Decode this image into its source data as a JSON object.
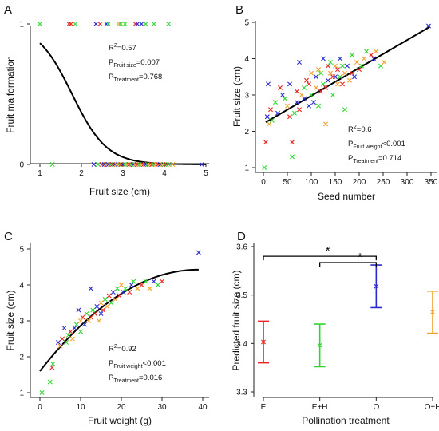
{
  "colors": {
    "red": "#e8241f",
    "green": "#2fd62f",
    "blue": "#2a2acf",
    "orange": "#f4a02a",
    "black": "#000000"
  },
  "chart_data": [
    {
      "panel": "A",
      "type": "scatter",
      "xlabel": "Fruit size (cm)",
      "ylabel": "Fruit malformation",
      "xlim": [
        1,
        5
      ],
      "ylim": [
        0,
        1
      ],
      "xticks": [
        "1",
        "2",
        "3",
        "4",
        "5"
      ],
      "yticks": [
        "0",
        "1"
      ],
      "annotations": [
        {
          "main": "R",
          "sup": "2",
          "rest": "=0.57"
        },
        {
          "main": "P",
          "sub": "Fruit size",
          "rest": "=0.007"
        },
        {
          "main": "P",
          "sub": "Treatment",
          "rest": "=0.768"
        }
      ],
      "curve": {
        "kind": "logistic",
        "intercept": 4.21,
        "slope": -2.37
      },
      "points": [
        [
          1.0,
          1,
          "green"
        ],
        [
          1.7,
          1,
          "red"
        ],
        [
          1.75,
          1,
          "red"
        ],
        [
          1.85,
          1,
          "green"
        ],
        [
          2.35,
          1,
          "blue"
        ],
        [
          2.45,
          1,
          "red"
        ],
        [
          2.6,
          1,
          "blue"
        ],
        [
          2.65,
          1,
          "green"
        ],
        [
          2.9,
          1,
          "orange"
        ],
        [
          2.95,
          1,
          "green"
        ],
        [
          3.05,
          1,
          "green"
        ],
        [
          3.3,
          1,
          "red"
        ],
        [
          3.35,
          1,
          "blue"
        ],
        [
          3.45,
          1,
          "blue"
        ],
        [
          3.55,
          1,
          "green"
        ],
        [
          3.75,
          1,
          "green"
        ],
        [
          4.1,
          1,
          "green"
        ],
        [
          1.3,
          0,
          "green"
        ],
        [
          2.3,
          0,
          "blue"
        ],
        [
          2.4,
          0,
          "green"
        ],
        [
          2.5,
          0,
          "red"
        ],
        [
          2.55,
          0,
          "blue"
        ],
        [
          2.6,
          0,
          "orange"
        ],
        [
          2.65,
          0,
          "blue"
        ],
        [
          2.7,
          0,
          "green"
        ],
        [
          2.75,
          0,
          "red"
        ],
        [
          2.8,
          0,
          "blue"
        ],
        [
          2.85,
          0,
          "orange"
        ],
        [
          2.9,
          0,
          "green"
        ],
        [
          2.95,
          0,
          "red"
        ],
        [
          3.0,
          0,
          "blue"
        ],
        [
          3.05,
          0,
          "green"
        ],
        [
          3.1,
          0,
          "orange"
        ],
        [
          3.15,
          0,
          "red"
        ],
        [
          3.2,
          0,
          "green"
        ],
        [
          3.25,
          0,
          "blue"
        ],
        [
          3.3,
          0,
          "orange"
        ],
        [
          3.35,
          0,
          "red"
        ],
        [
          3.4,
          0,
          "green"
        ],
        [
          3.45,
          0,
          "orange"
        ],
        [
          3.5,
          0,
          "red"
        ],
        [
          3.55,
          0,
          "blue"
        ],
        [
          3.6,
          0,
          "green"
        ],
        [
          3.65,
          0,
          "orange"
        ],
        [
          3.7,
          0,
          "red"
        ],
        [
          3.75,
          0,
          "green"
        ],
        [
          3.8,
          0,
          "orange"
        ],
        [
          3.85,
          0,
          "red"
        ],
        [
          3.9,
          0,
          "blue"
        ],
        [
          3.95,
          0,
          "orange"
        ],
        [
          4.0,
          0,
          "green"
        ],
        [
          4.05,
          0,
          "red"
        ],
        [
          4.1,
          0,
          "green"
        ],
        [
          4.2,
          0,
          "orange"
        ],
        [
          4.9,
          0,
          "blue"
        ]
      ]
    },
    {
      "panel": "B",
      "type": "scatter",
      "xlabel": "Seed number",
      "ylabel": "Fruit size (cm)",
      "xlim": [
        0,
        350
      ],
      "ylim": [
        1,
        5
      ],
      "xticks": [
        "0",
        "50",
        "100",
        "150",
        "200",
        "250",
        "300",
        "350"
      ],
      "yticks": [
        "1",
        "2",
        "3",
        "4",
        "5"
      ],
      "annotations": [
        {
          "main": "R",
          "sup": "2",
          "rest": "=0.6"
        },
        {
          "main": "P",
          "sub": "Fruit weight",
          "rest": "<0.001"
        },
        {
          "main": "P",
          "sub": "Treatment",
          "rest": "=0.714"
        }
      ],
      "curve": {
        "kind": "linear",
        "from": [
          5,
          2.25
        ],
        "to": [
          348,
          4.88
        ]
      },
      "points": [
        [
          2,
          1.0,
          "green"
        ],
        [
          5,
          1.7,
          "red"
        ],
        [
          8,
          2.4,
          "blue"
        ],
        [
          10,
          3.3,
          "blue"
        ],
        [
          12,
          2.2,
          "orange"
        ],
        [
          15,
          2.6,
          "red"
        ],
        [
          18,
          2.3,
          "green"
        ],
        [
          25,
          2.8,
          "green"
        ],
        [
          30,
          2.5,
          "blue"
        ],
        [
          35,
          3.2,
          "red"
        ],
        [
          40,
          3.0,
          "blue"
        ],
        [
          45,
          2.9,
          "green"
        ],
        [
          50,
          2.7,
          "orange"
        ],
        [
          55,
          2.4,
          "red"
        ],
        [
          55,
          3.3,
          "blue"
        ],
        [
          60,
          1.7,
          "red"
        ],
        [
          60,
          1.3,
          "green"
        ],
        [
          65,
          2.5,
          "green"
        ],
        [
          70,
          2.8,
          "blue"
        ],
        [
          70,
          3.1,
          "red"
        ],
        [
          75,
          3.9,
          "blue"
        ],
        [
          75,
          2.6,
          "red"
        ],
        [
          80,
          3.0,
          "orange"
        ],
        [
          85,
          3.2,
          "green"
        ],
        [
          85,
          2.9,
          "blue"
        ],
        [
          90,
          3.4,
          "red"
        ],
        [
          95,
          3.3,
          "red"
        ],
        [
          95,
          2.7,
          "blue"
        ],
        [
          100,
          3.6,
          "orange"
        ],
        [
          100,
          3.0,
          "green"
        ],
        [
          105,
          2.8,
          "blue"
        ],
        [
          110,
          3.5,
          "blue"
        ],
        [
          110,
          3.2,
          "orange"
        ],
        [
          115,
          3.7,
          "orange"
        ],
        [
          115,
          2.7,
          "green"
        ],
        [
          120,
          3.6,
          "green"
        ],
        [
          120,
          3.1,
          "red"
        ],
        [
          125,
          4.0,
          "blue"
        ],
        [
          125,
          3.3,
          "green"
        ],
        [
          130,
          3.2,
          "red"
        ],
        [
          130,
          2.2,
          "orange"
        ],
        [
          135,
          3.4,
          "blue"
        ],
        [
          135,
          3.8,
          "red"
        ],
        [
          140,
          3.6,
          "orange"
        ],
        [
          140,
          3.9,
          "green"
        ],
        [
          145,
          3.5,
          "red"
        ],
        [
          145,
          3.0,
          "green"
        ],
        [
          150,
          3.8,
          "orange"
        ],
        [
          150,
          3.5,
          "blue"
        ],
        [
          155,
          3.7,
          "red"
        ],
        [
          155,
          3.3,
          "orange"
        ],
        [
          160,
          3.5,
          "green"
        ],
        [
          160,
          4.0,
          "blue"
        ],
        [
          165,
          3.8,
          "green"
        ],
        [
          165,
          3.3,
          "red"
        ],
        [
          170,
          3.6,
          "orange"
        ],
        [
          170,
          2.6,
          "green"
        ],
        [
          175,
          3.8,
          "blue"
        ],
        [
          180,
          3.4,
          "orange"
        ],
        [
          185,
          4.1,
          "green"
        ],
        [
          185,
          3.6,
          "red"
        ],
        [
          190,
          3.5,
          "blue"
        ],
        [
          195,
          3.9,
          "orange"
        ],
        [
          200,
          3.7,
          "red"
        ],
        [
          205,
          3.8,
          "green"
        ],
        [
          210,
          4.0,
          "orange"
        ],
        [
          215,
          4.2,
          "green"
        ],
        [
          225,
          4.1,
          "red"
        ],
        [
          230,
          4.0,
          "blue"
        ],
        [
          235,
          4.2,
          "orange"
        ],
        [
          245,
          3.8,
          "green"
        ],
        [
          252,
          3.9,
          "orange"
        ],
        [
          345,
          4.9,
          "blue"
        ]
      ]
    },
    {
      "panel": "C",
      "type": "scatter",
      "xlabel": "Fruit weight (g)",
      "ylabel": "Fruit size (cm)",
      "xlim": [
        0,
        40
      ],
      "ylim": [
        1,
        5
      ],
      "xticks": [
        "0",
        "10",
        "20",
        "30",
        "40"
      ],
      "yticks": [
        "1",
        "2",
        "3",
        "4",
        "5"
      ],
      "annotations": [
        {
          "main": "R",
          "sup": "2",
          "rest": "=0.92"
        },
        {
          "main": "P",
          "sub": "Fruit weight",
          "rest": "<0.001"
        },
        {
          "main": "P",
          "sub": "Treatment",
          "rest": "=0.016"
        }
      ],
      "curve": {
        "kind": "quadratic",
        "c": 1.6,
        "b": 0.145,
        "a": -0.00186,
        "from": 0,
        "to": 39
      },
      "points": [
        [
          0.5,
          1.0,
          "green"
        ],
        [
          2.5,
          1.3,
          "green"
        ],
        [
          3,
          1.7,
          "red"
        ],
        [
          3.2,
          1.8,
          "green"
        ],
        [
          4.5,
          2.4,
          "blue"
        ],
        [
          5,
          2.3,
          "orange"
        ],
        [
          5.5,
          2.5,
          "red"
        ],
        [
          6,
          2.8,
          "blue"
        ],
        [
          6.5,
          2.4,
          "green"
        ],
        [
          7,
          2.6,
          "green"
        ],
        [
          7.5,
          2.7,
          "red"
        ],
        [
          8,
          2.5,
          "orange"
        ],
        [
          8.5,
          2.8,
          "blue"
        ],
        [
          9,
          2.9,
          "green"
        ],
        [
          9.5,
          3.3,
          "blue"
        ],
        [
          10,
          2.7,
          "green"
        ],
        [
          10,
          3.0,
          "orange"
        ],
        [
          10.5,
          3.1,
          "red"
        ],
        [
          11,
          2.9,
          "blue"
        ],
        [
          11.5,
          3.2,
          "green"
        ],
        [
          12,
          3.0,
          "orange"
        ],
        [
          12.5,
          3.9,
          "blue"
        ],
        [
          12.5,
          3.1,
          "red"
        ],
        [
          13,
          3.3,
          "green"
        ],
        [
          13.5,
          3.2,
          "red"
        ],
        [
          14,
          3.4,
          "blue"
        ],
        [
          14.5,
          3.0,
          "orange"
        ],
        [
          15,
          3.5,
          "orange"
        ],
        [
          15,
          3.2,
          "blue"
        ],
        [
          15.5,
          3.3,
          "red"
        ],
        [
          16,
          3.6,
          "green"
        ],
        [
          16.5,
          3.4,
          "orange"
        ],
        [
          17,
          3.7,
          "red"
        ],
        [
          17.5,
          3.5,
          "green"
        ],
        [
          18,
          3.8,
          "blue"
        ],
        [
          18.5,
          3.6,
          "orange"
        ],
        [
          19,
          3.9,
          "green"
        ],
        [
          19.5,
          3.7,
          "red"
        ],
        [
          20,
          4.0,
          "orange"
        ],
        [
          20.5,
          3.8,
          "blue"
        ],
        [
          21,
          3.9,
          "green"
        ],
        [
          22,
          3.8,
          "red"
        ],
        [
          22.5,
          4.0,
          "blue"
        ],
        [
          23,
          4.1,
          "green"
        ],
        [
          24,
          3.9,
          "orange"
        ],
        [
          25,
          4.0,
          "red"
        ],
        [
          26,
          4.1,
          "green"
        ],
        [
          27,
          3.9,
          "orange"
        ],
        [
          28,
          4.1,
          "blue"
        ],
        [
          29,
          4.0,
          "green"
        ],
        [
          30,
          4.1,
          "red"
        ],
        [
          39,
          4.9,
          "blue"
        ]
      ]
    },
    {
      "panel": "D",
      "type": "errorbar",
      "xlabel": "Pollination treatment",
      "ylabel": "Predicted fruit size (cm)",
      "ylim": [
        3.3,
        3.6
      ],
      "categories": [
        "E",
        "E+H",
        "O",
        "O+H"
      ],
      "yticks": [
        "3.3",
        "3.4",
        "3.5",
        "3.6"
      ],
      "values": [
        {
          "mean": 3.403,
          "lo": 3.36,
          "hi": 3.446,
          "color": "red"
        },
        {
          "mean": 3.396,
          "lo": 3.352,
          "hi": 3.44,
          "color": "green"
        },
        {
          "mean": 3.518,
          "lo": 3.474,
          "hi": 3.562,
          "color": "blue"
        },
        {
          "mean": 3.465,
          "lo": 3.421,
          "hi": 3.508,
          "color": "orange"
        }
      ],
      "significance": [
        {
          "from": "E",
          "to": "O",
          "label": "*"
        },
        {
          "from": "E+H",
          "to": "O",
          "label": "*"
        }
      ]
    }
  ]
}
